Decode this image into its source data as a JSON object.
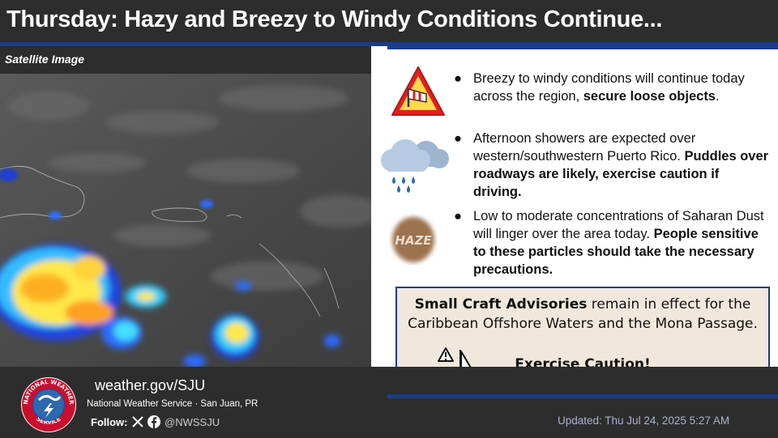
{
  "header": {
    "title": "Thursday: Hazy and Breezy to Windy Conditions Continue..."
  },
  "satellite": {
    "label": "Satellite Image"
  },
  "bullets": [
    {
      "icon": "windsock-warning-icon",
      "text": "Breezy to windy conditions will continue today across the region, ",
      "bold": "secure loose objects",
      "tail": "."
    },
    {
      "icon": "rain-cloud-icon",
      "text": "Afternoon showers are expected over western/southwestern Puerto Rico. ",
      "bold": "Puddles over roadways are likely, exercise caution if driving.",
      "tail": ""
    },
    {
      "icon": "haze-icon",
      "icon_text": "HAZE",
      "text": "Low to moderate concentrations of Saharan Dust will linger over the area today. ",
      "bold": "People sensitive to these particles should take the necessary precautions.",
      "tail": ""
    }
  ],
  "advisory": {
    "bold": "Small Craft Advisories",
    "text": " remain in effect for the Caribbean Offshore Waters and the Mona Passage.",
    "caution": "Exercise Caution!"
  },
  "footer": {
    "url": "weather.gov/SJU",
    "office": "National Weather Service · San Juan, PR",
    "follow_label": "Follow:",
    "handle": "@NWSSJU",
    "updated": "Updated: Thu Jul 24, 2025 5:27 AM",
    "logo_text_top": "NATIONAL WEATHER",
    "logo_text_bottom": "SERVICE"
  },
  "colors": {
    "accent_blue": "#1b3c8a",
    "dark_bg": "#2d2d2d",
    "advisory_bg": "#f0e8dc"
  }
}
